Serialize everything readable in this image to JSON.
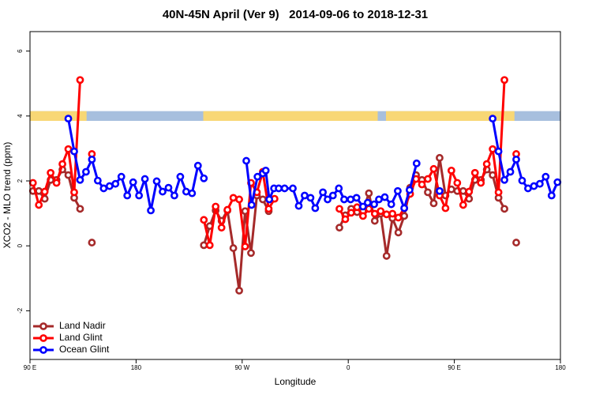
{
  "chart_data": {
    "type": "line",
    "title": "40N-45N April (Ver 9)   2014-09-06 to 2018-12-31",
    "x_label": "Longitude",
    "y_label": "XCO2 - MLO trend (ppm)",
    "xlim": [
      90,
      540
    ],
    "ylim": [
      -3.5,
      6.6
    ],
    "xticks": [
      {
        "value": 90,
        "label": "90 E"
      },
      180,
      {
        "value": 270,
        "label": "90 W"
      },
      {
        "value": 360,
        "label": "0"
      },
      {
        "value": 450,
        "label": "90 E"
      },
      {
        "value": 540,
        "label": "180"
      }
    ],
    "yticks": [
      -2,
      0,
      2,
      4,
      6
    ],
    "legend": "bottom-left",
    "strip": {
      "ylim": [
        3.85,
        4.15
      ],
      "land_color": "#f8d775",
      "ocean_color": "#a7bfde",
      "land": [
        [
          90,
          138
        ],
        [
          237,
          385
        ],
        [
          392,
          501
        ]
      ]
    },
    "series": [
      {
        "name": "Land Nadir",
        "color": "#a52a2a",
        "x": [
          92.5,
          97.5,
          102.5,
          107.5,
          112.5,
          117.5,
          122.5,
          127.5,
          132.5,
          137.5,
          142.5,
          190,
          237.5,
          242.5,
          247.5,
          252.5,
          257.5,
          262.5,
          267.5,
          272.5,
          277.5,
          282.5,
          287.5,
          292.5,
          322,
          352.5,
          357.5,
          362.5,
          367.5,
          372.5,
          377.5,
          382.5,
          387.5,
          392.5,
          397.5,
          402.5,
          407.5,
          412.5,
          417.5,
          422.5,
          427.5,
          432.5,
          437.5,
          442.5,
          447.5,
          452.5,
          457.5,
          462.5,
          467.5,
          472.5,
          477.5,
          482.5,
          487.5,
          492.5,
          497.5,
          502.5
        ],
        "values": [
          1.69,
          1.69,
          1.45,
          2.03,
          2.03,
          2.35,
          2.18,
          1.48,
          1.14,
          null,
          0.1,
          null,
          0.02,
          0.61,
          1.09,
          0.77,
          1.09,
          -0.07,
          -1.38,
          1.07,
          -0.22,
          1.55,
          1.43,
          1.07,
          null,
          0.56,
          0.94,
          1.14,
          1.04,
          1.07,
          1.62,
          0.77,
          0.99,
          -0.31,
          0.85,
          0.41,
          0.92,
          1.79,
          2.18,
          2.03,
          1.65,
          1.31,
          2.71,
          1.55,
          1.74,
          1.69,
          1.69,
          1.45,
          2.03,
          2.03,
          2.35,
          2.18,
          1.48,
          1.14,
          null,
          0.1
        ]
      },
      {
        "name": "Land Glint",
        "color": "#ff0000",
        "x": [
          92.5,
          97.5,
          102.5,
          107.5,
          112.5,
          117.5,
          122.5,
          127.5,
          132.5,
          137.5,
          142.5,
          190,
          237.5,
          242.5,
          247.5,
          252.5,
          257.5,
          262.5,
          267.5,
          272.5,
          277.5,
          282.5,
          287.5,
          292.5,
          297.5,
          325,
          352.5,
          357.5,
          362.5,
          367.5,
          372.5,
          377.5,
          382.5,
          387.5,
          392.5,
          397.5,
          402.5,
          407.5,
          412.5,
          417.5,
          422.5,
          427.5,
          432.5,
          437.5,
          442.5,
          447.5,
          452.5,
          457.5,
          462.5,
          467.5,
          472.5,
          477.5,
          482.5,
          487.5,
          492.5,
          497.5,
          502.5
        ],
        "values": [
          1.94,
          1.26,
          1.67,
          2.25,
          1.94,
          2.52,
          2.98,
          1.65,
          5.11,
          null,
          2.83,
          null,
          0.8,
          0.02,
          1.21,
          0.56,
          1.11,
          1.48,
          1.43,
          -0.02,
          1.94,
          1.65,
          2.28,
          1.14,
          1.45,
          null,
          1.14,
          0.82,
          1.02,
          1.19,
          0.92,
          1.14,
          0.99,
          1.07,
          0.97,
          0.99,
          0.87,
          1.16,
          1.6,
          2.06,
          1.89,
          2.06,
          2.37,
          1.55,
          1.16,
          2.32,
          1.94,
          1.26,
          1.67,
          2.25,
          1.94,
          2.52,
          2.98,
          1.65,
          5.11,
          null,
          2.83
        ]
      },
      {
        "name": "Ocean Glint",
        "color": "#0000ff",
        "x": [
          122.5,
          127.5,
          132.5,
          137.5,
          142.5,
          147.5,
          152.5,
          157.5,
          162.5,
          167.5,
          172.5,
          177.5,
          182.5,
          187.5,
          192.5,
          197.5,
          202.5,
          207.5,
          212.5,
          217.5,
          222.5,
          227.5,
          232.5,
          237.5,
          255,
          273.5,
          278,
          283,
          287.5,
          290,
          293,
          297,
          301,
          306,
          313,
          318,
          323,
          328,
          332,
          338.5,
          342.5,
          347,
          352,
          356.5,
          362,
          367,
          372.5,
          376.5,
          382,
          386,
          391,
          396.5,
          402,
          407.5,
          412,
          418,
          430,
          437.5,
          460,
          482.5,
          487.5,
          492.5,
          497.5,
          502.5,
          507.5,
          512.5,
          517.5,
          522.5,
          527.5,
          532.5,
          537.5
        ],
        "values": [
          3.92,
          2.91,
          2.03,
          2.28,
          2.66,
          2.01,
          1.77,
          1.84,
          1.91,
          2.13,
          1.55,
          1.96,
          1.55,
          2.06,
          1.09,
          1.99,
          1.67,
          1.79,
          1.55,
          2.13,
          1.67,
          1.62,
          2.47,
          2.08,
          null,
          2.62,
          1.26,
          2.13,
          2.23,
          2.32,
          1.43,
          1.77,
          1.77,
          1.77,
          1.77,
          1.23,
          1.55,
          1.48,
          1.16,
          1.65,
          1.43,
          1.55,
          1.77,
          1.43,
          1.43,
          1.48,
          1.21,
          1.33,
          1.28,
          1.43,
          1.5,
          1.28,
          1.69,
          1.16,
          1.72,
          2.54,
          null,
          1.69,
          null,
          3.92,
          2.91,
          2.03,
          2.28,
          2.66,
          2.01,
          1.77,
          1.84,
          1.91,
          2.13,
          1.55,
          1.96
        ]
      }
    ]
  }
}
